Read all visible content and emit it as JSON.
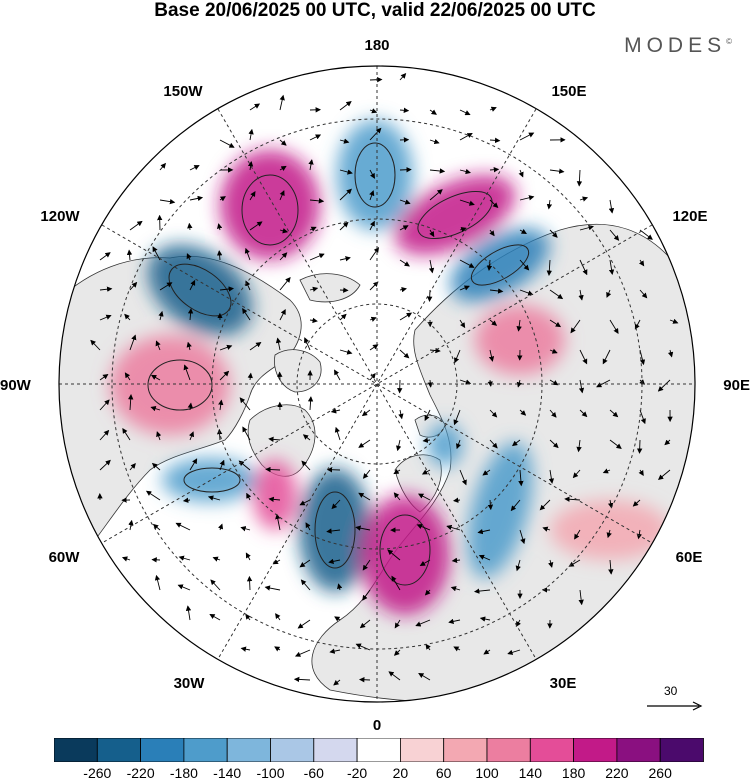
{
  "title": "Base 20/06/2025 00 UTC, valid 22/06/2025 00 UTC",
  "brand": "MODES",
  "brand_mark": "©",
  "map": {
    "projection": "north polar stereographic",
    "longitude_labels": {
      "top": "180",
      "bottom": "0",
      "left": "90W",
      "right": "90E",
      "upper_left_1": "150W",
      "upper_left_2": "120W",
      "upper_right_1": "150E",
      "upper_right_2": "120E",
      "lower_left_1": "60W",
      "lower_left_2": "30W",
      "lower_right_1": "60E",
      "lower_right_2": "30E"
    },
    "wind_vector_reference": "30",
    "colors": {
      "land": "#e8e8e8",
      "ocean": "#ffffff",
      "coast": "#333333",
      "grid": "#333333"
    }
  },
  "colorbar": {
    "labels": [
      "-260",
      "-220",
      "-180",
      "-140",
      "-100",
      "-60",
      "-20",
      "20",
      "60",
      "100",
      "140",
      "180",
      "220",
      "260"
    ],
    "colors": [
      "#0a3a5c",
      "#155f8c",
      "#2a7fb8",
      "#4e9ccb",
      "#7eb6dc",
      "#aac7e6",
      "#d4d8ee",
      "#ffffff",
      "#f8d2d4",
      "#f3a8b2",
      "#ec7ea0",
      "#e44d98",
      "#c21a88",
      "#8a1080",
      "#4b0a6c"
    ]
  },
  "anomalies": [
    {
      "sign": "neg",
      "strength": 0.95
    },
    {
      "sign": "pos",
      "strength": 0.75
    },
    {
      "sign": "neg",
      "strength": 0.7
    },
    {
      "sign": "pos",
      "strength": 0.75
    },
    {
      "sign": "neg",
      "strength": 0.85
    },
    {
      "sign": "pos",
      "strength": 0.55
    },
    {
      "sign": "neg",
      "strength": 0.95
    },
    {
      "sign": "pos",
      "strength": 0.8
    },
    {
      "sign": "neg",
      "strength": 0.6
    },
    {
      "sign": "neg",
      "strength": 0.7
    },
    {
      "sign": "pos",
      "strength": 0.55
    },
    {
      "sign": "pos",
      "strength": 0.35
    },
    {
      "sign": "neg",
      "strength": 0.7
    },
    {
      "sign": "pos",
      "strength": 0.6
    }
  ]
}
